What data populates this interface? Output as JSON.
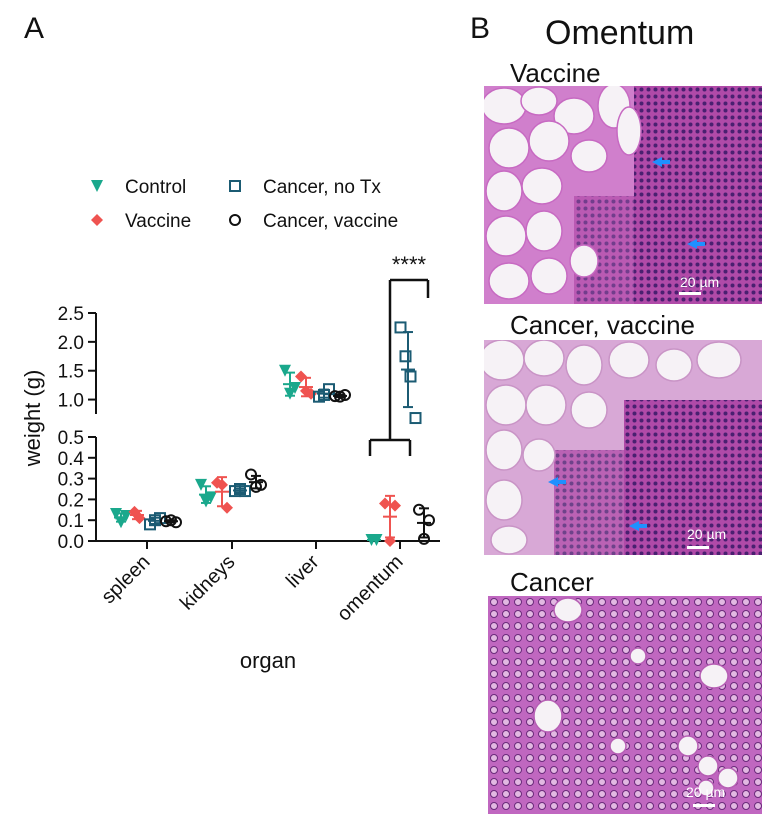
{
  "panels": {
    "a_label": "A",
    "b_label": "B"
  },
  "chart_data": {
    "type": "scatter",
    "xlabel": "organ",
    "ylabel": "weight (g)",
    "categories": [
      "spleen",
      "kidneys",
      "liver",
      "omentum"
    ],
    "y_axis_broken": true,
    "ylim_lower": [
      0,
      0.5
    ],
    "ylim_upper": [
      0.75,
      2.5
    ],
    "yticks_lower": [
      "0.0",
      "0.1",
      "0.2",
      "0.3",
      "0.4",
      "0.5"
    ],
    "yticks_upper": [
      "1.0",
      "1.5",
      "2.0",
      "2.5"
    ],
    "grid": false,
    "legend_position": "top",
    "series": [
      {
        "name": "Control",
        "marker": "triangle-down",
        "color": "#1aa88c",
        "points": {
          "spleen": [
            0.13,
            0.09,
            0.12
          ],
          "kidneys": [
            0.27,
            0.19,
            0.21
          ],
          "liver": [
            1.5,
            1.1,
            1.2
          ],
          "omentum": [
            0.005,
            0.005
          ]
        },
        "mean": {
          "spleen": 0.113,
          "kidneys": 0.223,
          "liver": 1.267,
          "omentum": 0.005
        },
        "sd": {
          "spleen": 0.02,
          "kidneys": 0.04,
          "liver": 0.2,
          "omentum": 0.0
        }
      },
      {
        "name": "Vaccine",
        "marker": "diamond",
        "color": "#ef5350",
        "points": {
          "spleen": [
            0.14,
            0.11
          ],
          "kidneys": [
            0.28,
            0.27,
            0.16
          ],
          "liver": [
            1.4,
            1.15,
            1.1
          ],
          "omentum": [
            0.18,
            0.0,
            0.17
          ]
        },
        "mean": {
          "spleen": 0.125,
          "kidneys": 0.237,
          "liver": 1.217,
          "omentum": 0.117
        },
        "sd": {
          "spleen": 0.02,
          "kidneys": 0.07,
          "liver": 0.16,
          "omentum": 0.1
        }
      },
      {
        "name": "Cancer, no Tx",
        "marker": "square-open",
        "color": "#1b5b73",
        "points": {
          "spleen": [
            0.08,
            0.1,
            0.11
          ],
          "kidneys": [
            0.24,
            0.25,
            0.24
          ],
          "liver": [
            1.05,
            1.08,
            1.18
          ],
          "omentum": [
            2.25,
            1.75,
            1.4,
            0.68
          ]
        },
        "mean": {
          "spleen": 0.097,
          "kidneys": 0.243,
          "liver": 1.103,
          "omentum": 1.52
        },
        "sd": {
          "spleen": 0.015,
          "kidneys": 0.01,
          "liver": 0.07,
          "omentum": 0.65
        }
      },
      {
        "name": "Cancer, vaccine",
        "marker": "circle-open",
        "color": "#111111",
        "points": {
          "spleen": [
            0.095,
            0.1,
            0.09
          ],
          "kidneys": [
            0.32,
            0.26,
            0.27
          ],
          "liver": [
            1.06,
            1.05,
            1.08
          ],
          "omentum": [
            0.15,
            0.01,
            0.1
          ]
        },
        "mean": {
          "spleen": 0.095,
          "kidneys": 0.283,
          "liver": 1.063,
          "omentum": 0.087
        },
        "sd": {
          "spleen": 0.005,
          "kidneys": 0.03,
          "liver": 0.02,
          "omentum": 0.07
        }
      }
    ],
    "annotations": [
      {
        "text": "****",
        "category": "omentum",
        "comparison": "all other groups vs Cancer, no Tx"
      }
    ]
  },
  "micrographs": {
    "title": "Omentum",
    "items": [
      {
        "label": "Vaccine",
        "scale": "20 µm"
      },
      {
        "label": "Cancer, vaccine",
        "scale": "20 µm"
      },
      {
        "label": "Cancer",
        "scale": "20 µm"
      }
    ],
    "arrow_color": "#1e90ff"
  }
}
